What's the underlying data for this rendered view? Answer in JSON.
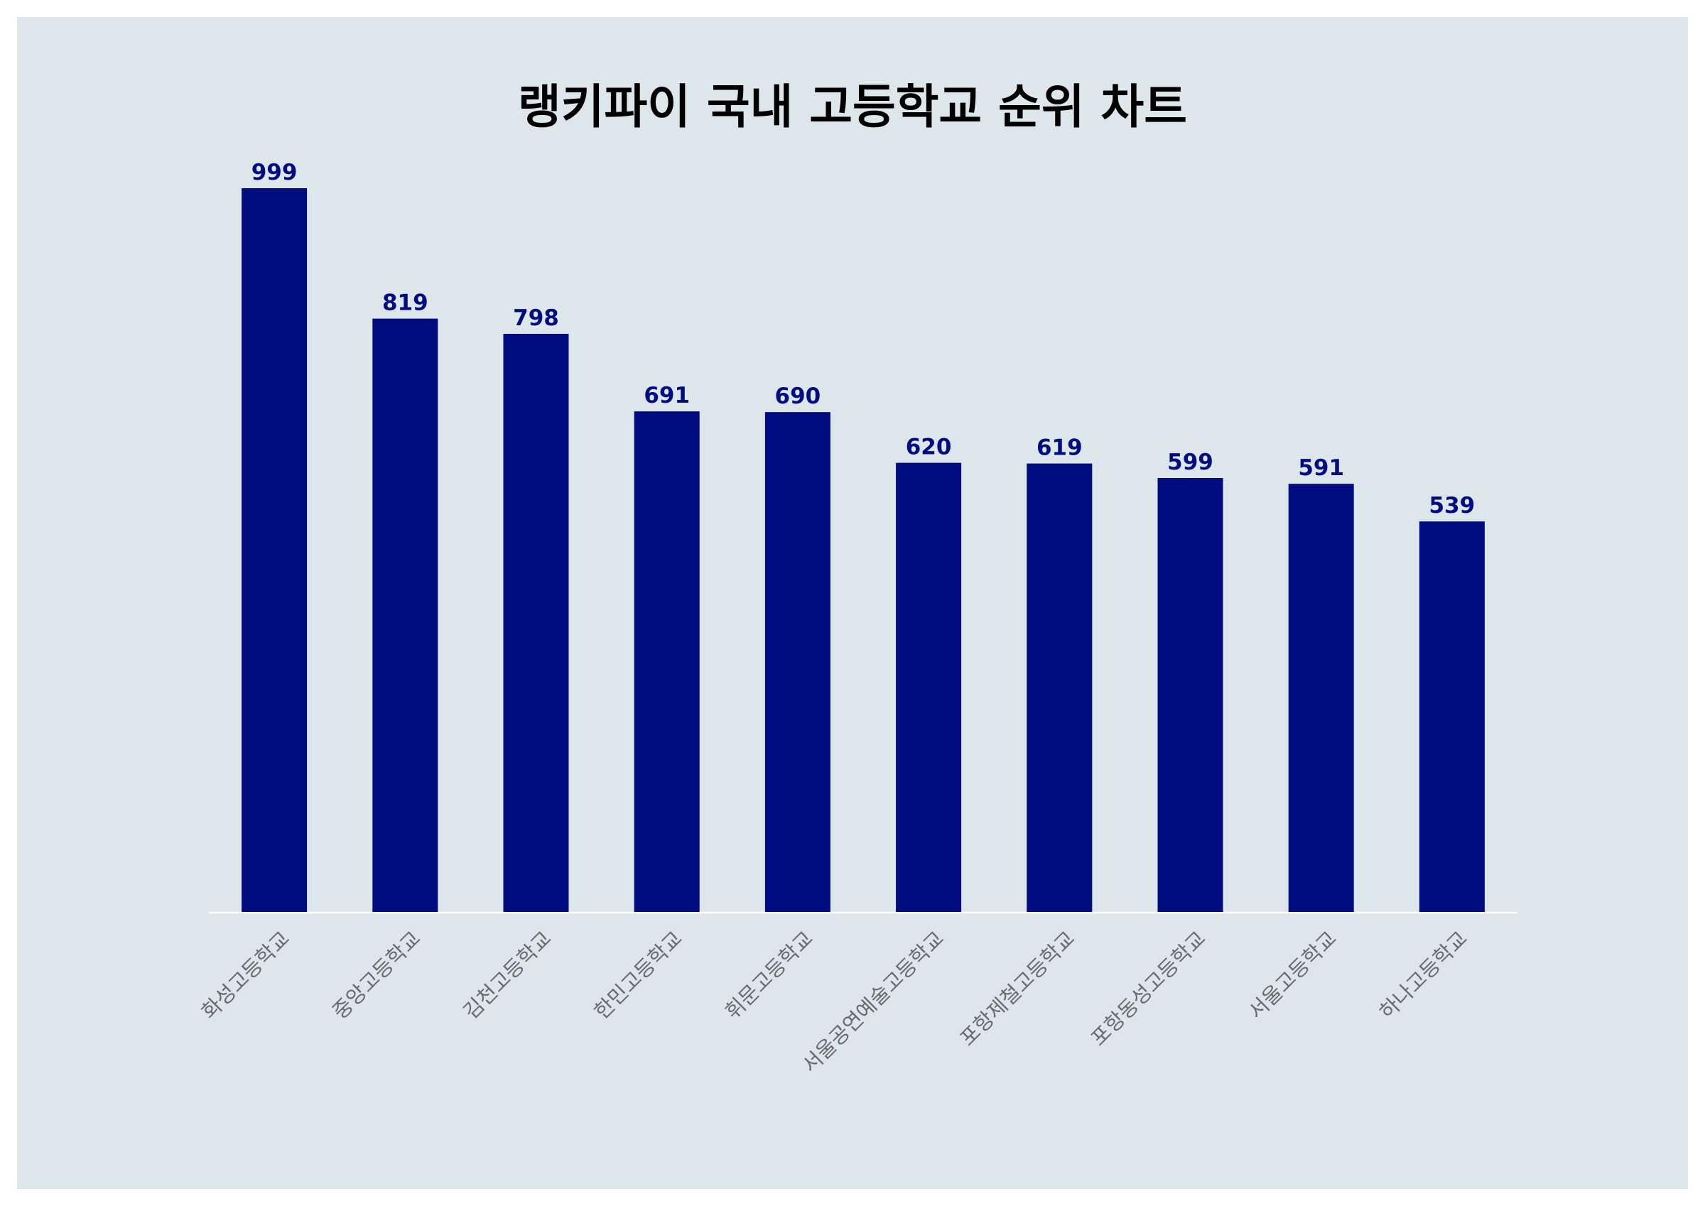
{
  "colors": {
    "background": "#dce6eb",
    "bar": "#000c80",
    "value_label": "#000c80",
    "tick_label": "#6a6a6a",
    "axis_line": "#ffffff"
  },
  "chart_data": {
    "type": "bar",
    "title": "랭키파이 국내 고등학교 순위 차트",
    "xlabel": "",
    "ylabel": "",
    "categories": [
      "화성고등학교",
      "중앙고등학교",
      "김천고등학교",
      "한민고등학교",
      "휘문고등학교",
      "서울공연예술고등학교",
      "포항제철고등학교",
      "포항동성고등학교",
      "서울고등학교",
      "하나고등학교"
    ],
    "values": [
      999,
      819,
      798,
      691,
      690,
      620,
      619,
      599,
      591,
      539
    ],
    "ylim": [
      0,
      999
    ],
    "grid": false,
    "legend": "none",
    "data_labels": true
  }
}
